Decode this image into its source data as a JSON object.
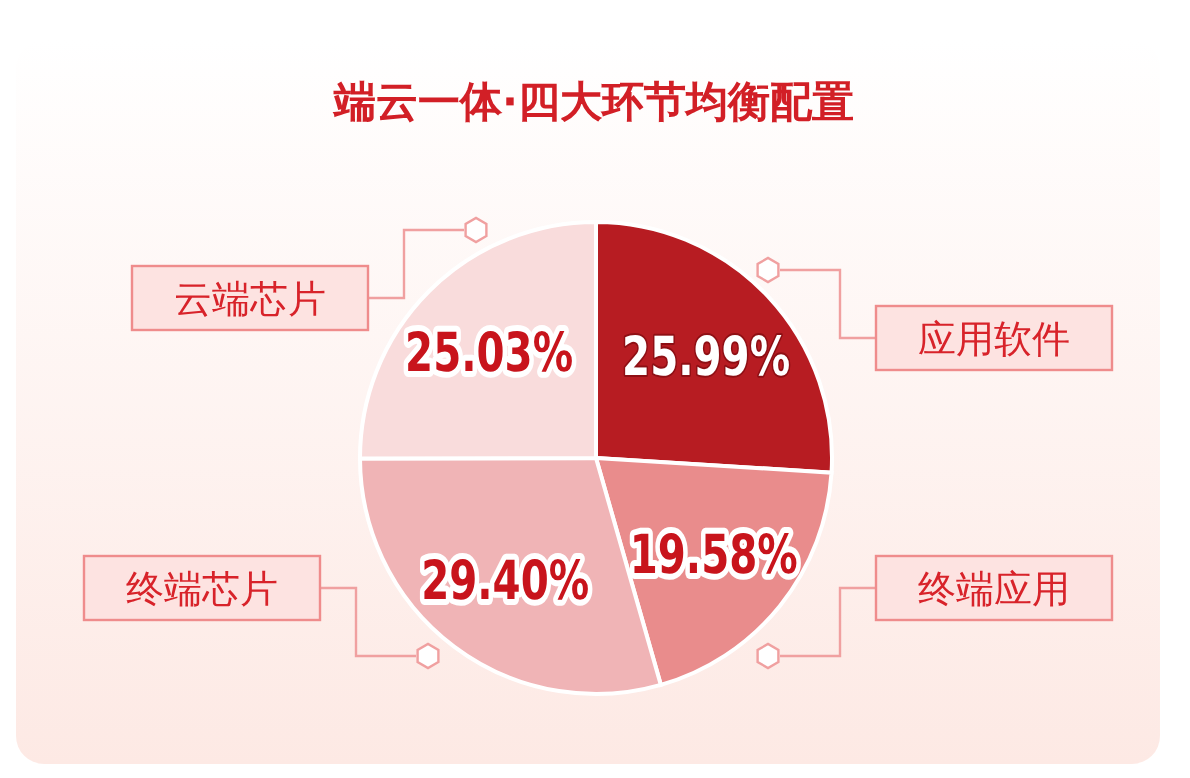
{
  "chart_data": {
    "type": "pie",
    "title": "端云一体·四大环节均衡配置",
    "categories": [
      "应用软件",
      "终端应用",
      "终端芯片",
      "云端芯片"
    ],
    "values": [
      25.99,
      19.58,
      29.4,
      25.03
    ],
    "value_labels": [
      "25.99%",
      "19.58%",
      "29.40%",
      "25.03%"
    ],
    "colors": [
      "#b71c22",
      "#e98c8c",
      "#f0b4b6",
      "#f9dcdc"
    ]
  }
}
